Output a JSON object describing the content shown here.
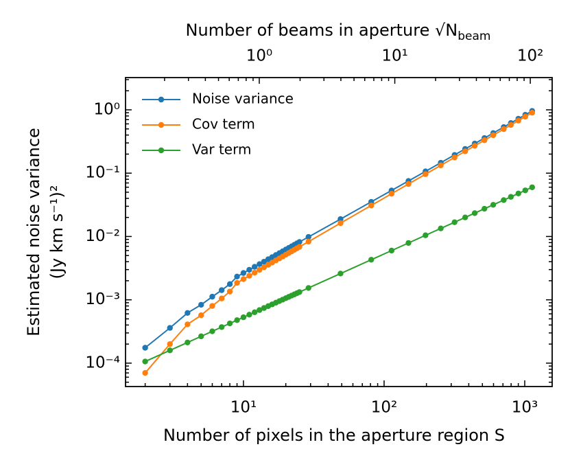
{
  "chart_data": {
    "type": "line",
    "top_xlabel": "Number of beams in aperture √N",
    "top_xlabel_sub": "beam",
    "xlabel": "Number of pixels in the aperture region S",
    "ylabel": [
      "Estimated noise variance",
      "(Jy km s⁻¹)²"
    ],
    "log_x": true,
    "log_y": true,
    "legend": "upper left",
    "x": [
      2,
      3,
      4,
      5,
      6,
      7,
      8,
      9,
      10,
      11,
      12,
      13,
      14,
      15,
      16,
      17,
      18,
      19,
      20,
      21,
      22,
      23,
      24,
      25,
      29,
      49,
      81,
      113,
      149,
      197,
      253,
      317,
      377,
      441,
      517,
      597,
      709,
      797,
      901,
      1009,
      1129
    ],
    "series": [
      {
        "name": "Noise variance",
        "color": "#1f77b4",
        "values": [
          0.000175,
          0.00036,
          0.00062,
          0.000835,
          0.00112,
          0.00142,
          0.00177,
          0.00233,
          0.00265,
          0.00298,
          0.00332,
          0.00366,
          0.004,
          0.00437,
          0.00472,
          0.00509,
          0.00545,
          0.00583,
          0.00622,
          0.0066,
          0.00699,
          0.00738,
          0.00778,
          0.00819,
          0.00983,
          0.01884,
          0.0352,
          0.0533,
          0.0753,
          0.1067,
          0.1461,
          0.1939,
          0.241,
          0.2934,
          0.3584,
          0.4296,
          0.5336,
          0.6192,
          0.7228,
          0.8335,
          0.9598
        ]
      },
      {
        "name": "Cov term",
        "color": "#ff7f0e",
        "values": [
          7e-05,
          0.0002,
          0.00041,
          0.00057,
          0.0008,
          0.00105,
          0.00135,
          0.00185,
          0.00212,
          0.0024,
          0.00268,
          0.00297,
          0.00326,
          0.00357,
          0.00387,
          0.00419,
          0.0045,
          0.00482,
          0.00516,
          0.00549,
          0.00582,
          0.00616,
          0.00651,
          0.00686,
          0.00829,
          0.01624,
          0.0309,
          0.0473,
          0.0674,
          0.0963,
          0.1327,
          0.1771,
          0.221,
          0.27,
          0.331,
          0.398,
          0.496,
          0.577,
          0.675,
          0.78,
          0.9
        ]
      },
      {
        "name": "Var term",
        "color": "#2ca02c",
        "values": [
          0.000106,
          0.000159,
          0.000212,
          0.000265,
          0.000318,
          0.000371,
          0.000424,
          0.000477,
          0.00053,
          0.000583,
          0.000636,
          0.000689,
          0.000742,
          0.000795,
          0.000848,
          0.000901,
          0.000954,
          0.001007,
          0.00106,
          0.001113,
          0.001166,
          0.001219,
          0.001272,
          0.001325,
          0.001537,
          0.002597,
          0.004293,
          0.005989,
          0.007897,
          0.01044,
          0.01341,
          0.0168,
          0.01998,
          0.02337,
          0.0274,
          0.03164,
          0.03758,
          0.04224,
          0.04775,
          0.05348,
          0.05984
        ]
      }
    ],
    "xlim": [
      1.45,
      1567
    ],
    "xticks": [
      {
        "value": 10,
        "label": "10¹"
      },
      {
        "value": 100,
        "label": "10²"
      },
      {
        "value": 1000,
        "label": "10³"
      }
    ],
    "top_xlim": [
      0.103,
      145
    ],
    "top_xticks": [
      {
        "value": 1,
        "label": "10⁰"
      },
      {
        "value": 10,
        "label": "10¹"
      },
      {
        "value": 100,
        "label": "10²"
      }
    ],
    "ylim": [
      4.27e-05,
      3.23
    ],
    "yticks": [
      {
        "value": 0.0001,
        "label": "10⁻⁴"
      },
      {
        "value": 0.001,
        "label": "10⁻³"
      },
      {
        "value": 0.01,
        "label": "10⁻²"
      },
      {
        "value": 0.1,
        "label": "10⁻¹"
      },
      {
        "value": 1,
        "label": "10⁰"
      }
    ]
  }
}
